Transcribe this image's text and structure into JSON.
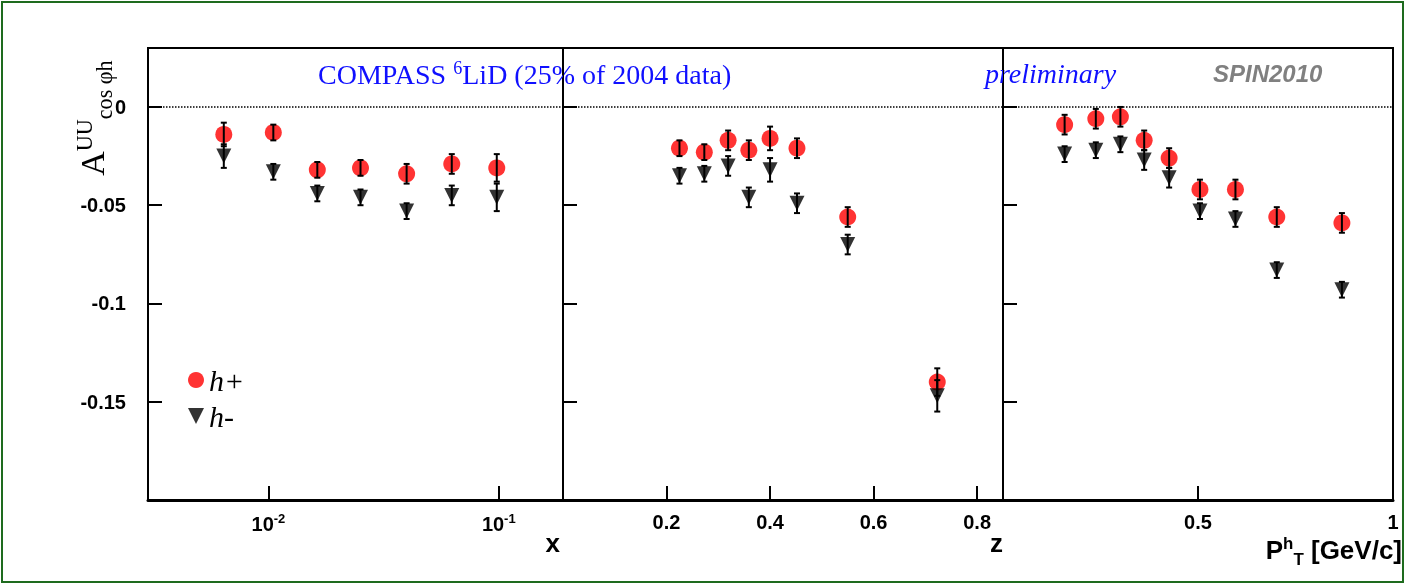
{
  "chart_data": [
    {
      "type": "scatter",
      "ylabel": "A$^{UU}$$_{cos φh}$",
      "xlabel": "x",
      "annotations": [
        "COMPASS $^{6}$LiD (25% of 2004 data)"
      ],
      "log": "x",
      "xlim": [
        0.003,
        0.19
      ],
      "xticks": [
        {
          "value": 0.01,
          "label": "10$^{-2}$"
        },
        {
          "value": 0.1,
          "label": "10$^{-1}$"
        }
      ],
      "ylim": [
        -0.2,
        0.03
      ],
      "yticks": [
        0,
        -0.05,
        -0.1,
        -0.15
      ],
      "legend": "bottom left",
      "ref_lines": [
        {
          "axis": "y",
          "value": 0,
          "line_style": "dotted",
          "color": "#000000"
        }
      ],
      "x": [
        0.0064,
        0.0105,
        0.0163,
        0.0251,
        0.0398,
        0.0625,
        0.098
      ],
      "series": [
        {
          "name": "h+",
          "color": "#ff0000",
          "marker": "circle",
          "values": [
            -0.014,
            -0.013,
            -0.032,
            -0.031,
            -0.034,
            -0.029,
            -0.031
          ],
          "errors": [
            0.006,
            0.004,
            0.004,
            0.004,
            0.005,
            0.005,
            0.007
          ]
        },
        {
          "name": "h-",
          "color": "#000000",
          "marker": "triangle",
          "values": [
            -0.025,
            -0.033,
            -0.044,
            -0.046,
            -0.053,
            -0.045,
            -0.046
          ],
          "errors": [
            0.006,
            0.004,
            0.004,
            0.004,
            0.004,
            0.005,
            0.007
          ]
        }
      ]
    },
    {
      "type": "scatter",
      "xlabel": "z",
      "annotations": [
        "preliminary"
      ],
      "xlim": [
        0,
        0.85
      ],
      "xticks": [
        0.2,
        0.4,
        0.6,
        0.8
      ],
      "ylim": [
        -0.2,
        0.03
      ],
      "yticks": [
        0,
        -0.05,
        -0.1,
        -0.15
      ],
      "tick_labels": "x",
      "ref_lines": [
        {
          "axis": "y",
          "value": 0,
          "line_style": "dotted",
          "color": "#000000"
        }
      ],
      "x": [
        0.225,
        0.273,
        0.319,
        0.359,
        0.4,
        0.452,
        0.55,
        0.723
      ],
      "series": [
        {
          "color": "#ff0000",
          "marker": "circle",
          "values": [
            -0.021,
            -0.023,
            -0.017,
            -0.022,
            -0.016,
            -0.021,
            -0.056,
            -0.14
          ],
          "errors": [
            0.004,
            0.004,
            0.005,
            0.005,
            0.006,
            0.005,
            0.005,
            0.007
          ]
        },
        {
          "color": "#000000",
          "marker": "triangle",
          "values": [
            -0.035,
            -0.034,
            -0.03,
            -0.046,
            -0.032,
            -0.049,
            -0.07,
            -0.147
          ],
          "errors": [
            0.004,
            0.004,
            0.005,
            0.005,
            0.006,
            0.005,
            0.005,
            0.008
          ]
        }
      ]
    },
    {
      "type": "scatter",
      "xlabel": "P$^{h}$$_{T}$ [GeV/c]",
      "annotations": [
        "SPIN2010"
      ],
      "xlim": [
        0,
        1
      ],
      "xticks": [
        0.5,
        1
      ],
      "ylim": [
        -0.2,
        0.03
      ],
      "yticks": [
        0,
        -0.05,
        -0.1,
        -0.15
      ],
      "tick_labels": "x",
      "ref_lines": [
        {
          "axis": "y",
          "value": 0,
          "line_style": "dotted",
          "color": "#000000"
        }
      ],
      "x": [
        0.158,
        0.238,
        0.301,
        0.362,
        0.426,
        0.505,
        0.596,
        0.702,
        0.869
      ],
      "series": [
        {
          "color": "#ff0000",
          "marker": "circle",
          "values": [
            -0.009,
            -0.006,
            -0.005,
            -0.017,
            -0.026,
            -0.042,
            -0.042,
            -0.056,
            -0.059
          ],
          "errors": [
            0.005,
            0.005,
            0.005,
            0.005,
            0.005,
            0.005,
            0.005,
            0.005,
            0.005
          ]
        },
        {
          "color": "#000000",
          "marker": "triangle",
          "values": [
            -0.024,
            -0.022,
            -0.019,
            -0.027,
            -0.036,
            -0.053,
            -0.057,
            -0.083,
            -0.093
          ],
          "errors": [
            0.004,
            0.004,
            0.004,
            0.005,
            0.005,
            0.004,
            0.004,
            0.004,
            0.004
          ]
        }
      ]
    }
  ]
}
